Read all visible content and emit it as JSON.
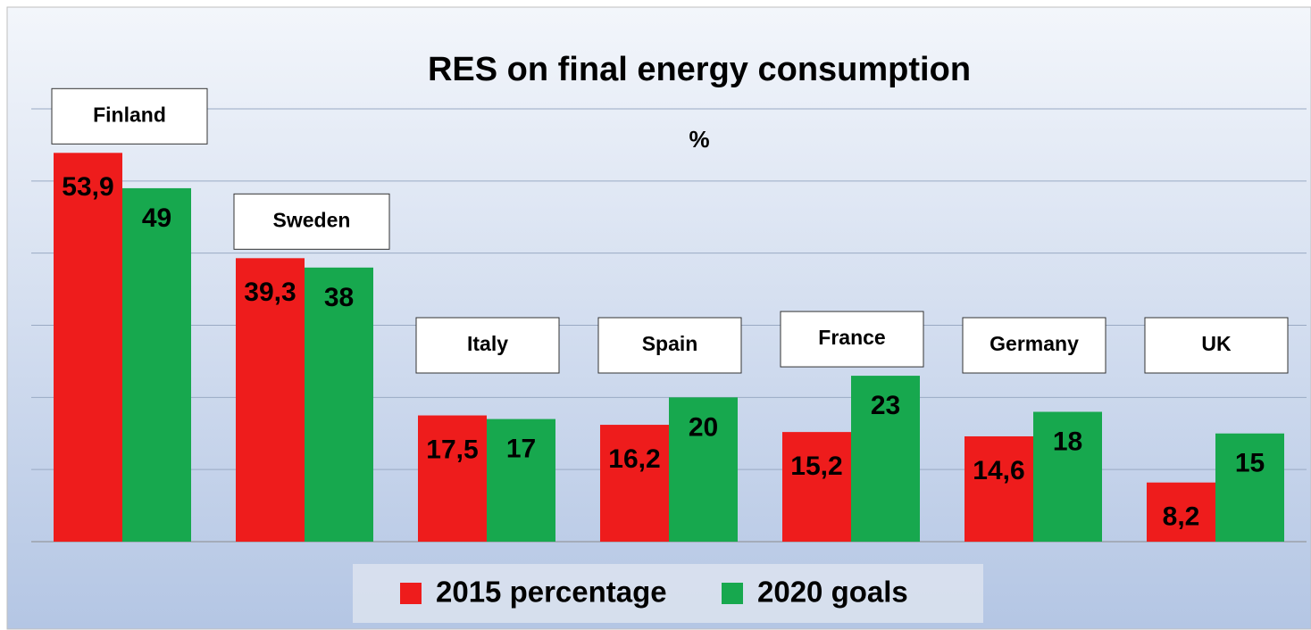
{
  "chart_data": {
    "type": "bar",
    "title": "RES on final energy consumption",
    "subtitle": "%",
    "categories": [
      "Finland",
      "Sweden",
      "Italy",
      "Spain",
      "France",
      "Germany",
      "UK"
    ],
    "series": [
      {
        "name": "2015 percentage",
        "color": "#ee1c1c",
        "values": [
          53.9,
          39.3,
          17.5,
          16.2,
          15.2,
          14.6,
          8.2
        ],
        "value_labels": [
          "53,9",
          "39,3",
          "17,5",
          "16,2",
          "15,2",
          "14,6",
          "8,2"
        ]
      },
      {
        "name": "2020 goals",
        "color": "#17a84e",
        "values": [
          49,
          38,
          17,
          20,
          23,
          18,
          15
        ]
      }
    ],
    "ylim": [
      0,
      60
    ],
    "yticks": [
      0,
      10,
      20,
      30,
      40,
      50,
      60
    ],
    "grid": true,
    "legend": "bottom"
  }
}
